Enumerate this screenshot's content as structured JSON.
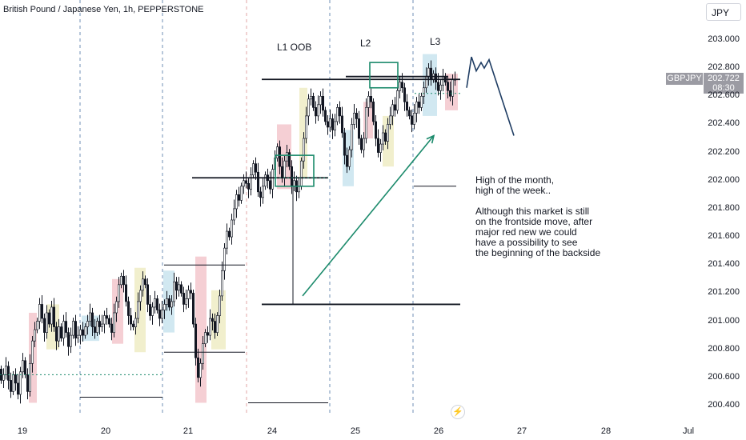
{
  "header": {
    "symbol_title": "British Pound / Japanese Yen, 1h, PEPPERSTONE",
    "currency": "JPY"
  },
  "price_tag": {
    "symbol": "GBPJPY",
    "price": "202.722",
    "countdown": "08:30"
  },
  "annotations": {
    "l1": "L1 OOB",
    "l2": "L2",
    "l3": "L3"
  },
  "note": "High of the month,\nhigh of the week..\n\nAlthough this market is still\non the frontside move, after\nmajor red new we could\nhave a possibility to see\nthe beginning of the backside",
  "icons": {
    "flash": "flash-icon"
  },
  "colors": {
    "up": "#ffffff",
    "down": "#131722",
    "session_red": "#f3c7cc",
    "session_blue": "#c9e4ef",
    "session_yellow": "#efecc4",
    "arrow": "#1b8a6b",
    "forecast": "#1f3d63",
    "box": "#1b8a6b"
  },
  "chart_data": {
    "type": "candlestick",
    "title": "British Pound / Japanese Yen, 1h, PEPPERSTONE",
    "y_axis": {
      "labels": [
        "203.000",
        "202.800",
        "202.600",
        "202.400",
        "202.200",
        "202.000",
        "201.800",
        "201.600",
        "201.400",
        "201.200",
        "201.000",
        "200.800",
        "200.600",
        "200.400"
      ],
      "range": [
        200.35,
        203.2
      ]
    },
    "x_axis": {
      "labels": [
        "19",
        "20",
        "21",
        "24",
        "25",
        "26",
        "27",
        "28",
        "Jul"
      ]
    },
    "path": [
      [
        0,
        200.66
      ],
      [
        3,
        200.58
      ],
      [
        6,
        200.62
      ],
      [
        9,
        200.68
      ],
      [
        12,
        200.58
      ],
      [
        15,
        200.5
      ],
      [
        18,
        200.62
      ],
      [
        21,
        200.56
      ],
      [
        24,
        200.48
      ],
      [
        27,
        200.64
      ],
      [
        30,
        200.72
      ],
      [
        33,
        200.62
      ],
      [
        36,
        200.5
      ],
      [
        39,
        200.7
      ],
      [
        42,
        200.86
      ],
      [
        45,
        200.94
      ],
      [
        48,
        201.0
      ],
      [
        51,
        201.12
      ],
      [
        54,
        201.02
      ],
      [
        57,
        200.92
      ],
      [
        60,
        201.06
      ],
      [
        63,
        200.98
      ],
      [
        66,
        201.1
      ],
      [
        69,
        200.96
      ],
      [
        72,
        200.86
      ],
      [
        75,
        200.96
      ],
      [
        78,
        200.88
      ],
      [
        81,
        201.0
      ],
      [
        84,
        200.92
      ],
      [
        87,
        200.82
      ],
      [
        90,
        200.9
      ],
      [
        93,
        201.0
      ],
      [
        96,
        200.88
      ],
      [
        99,
        200.9
      ],
      [
        102,
        200.94
      ],
      [
        105,
        200.9
      ],
      [
        108,
        200.96
      ],
      [
        111,
        201.0
      ],
      [
        114,
        201.06
      ],
      [
        117,
        200.96
      ],
      [
        120,
        200.92
      ],
      [
        123,
        201.0
      ],
      [
        126,
        200.96
      ],
      [
        129,
        200.98
      ],
      [
        132,
        201.04
      ],
      [
        135,
        201.02
      ],
      [
        138,
        200.98
      ],
      [
        141,
        200.92
      ],
      [
        144,
        201.06
      ],
      [
        147,
        201.14
      ],
      [
        150,
        201.26
      ],
      [
        153,
        201.32
      ],
      [
        156,
        201.26
      ],
      [
        159,
        201.14
      ],
      [
        162,
        201.04
      ],
      [
        165,
        200.98
      ],
      [
        168,
        200.96
      ],
      [
        171,
        201.02
      ],
      [
        174,
        201.14
      ],
      [
        177,
        201.22
      ],
      [
        180,
        201.3
      ],
      [
        183,
        201.26
      ],
      [
        186,
        201.12
      ],
      [
        189,
        201.04
      ],
      [
        192,
        201.1
      ],
      [
        195,
        201.16
      ],
      [
        198,
        201.08
      ],
      [
        201,
        201.02
      ],
      [
        204,
        201.08
      ],
      [
        207,
        201.12
      ],
      [
        210,
        201.16
      ],
      [
        213,
        201.1
      ],
      [
        216,
        201.14
      ],
      [
        219,
        201.28
      ],
      [
        222,
        201.22
      ],
      [
        225,
        201.26
      ],
      [
        228,
        201.2
      ],
      [
        231,
        201.12
      ],
      [
        234,
        201.16
      ],
      [
        237,
        201.22
      ],
      [
        240,
        201.2
      ],
      [
        243,
        200.98
      ],
      [
        246,
        200.74
      ],
      [
        249,
        200.6
      ],
      [
        252,
        200.7
      ],
      [
        255,
        200.84
      ],
      [
        258,
        200.92
      ],
      [
        261,
        200.9
      ],
      [
        264,
        201.02
      ],
      [
        267,
        201.0
      ],
      [
        270,
        200.92
      ],
      [
        273,
        201.04
      ],
      [
        276,
        201.18
      ],
      [
        279,
        201.36
      ],
      [
        282,
        201.52
      ],
      [
        285,
        201.64
      ],
      [
        288,
        201.6
      ],
      [
        291,
        201.72
      ],
      [
        294,
        201.8
      ],
      [
        297,
        201.9
      ],
      [
        300,
        201.86
      ],
      [
        303,
        201.96
      ],
      [
        306,
        202.0
      ],
      [
        309,
        201.98
      ],
      [
        312,
        201.94
      ],
      [
        315,
        202.04
      ],
      [
        318,
        202.12
      ],
      [
        321,
        202.06
      ],
      [
        324,
        201.92
      ],
      [
        327,
        201.88
      ],
      [
        330,
        201.96
      ],
      [
        333,
        202.04
      ],
      [
        336,
        202.0
      ],
      [
        339,
        201.94
      ],
      [
        342,
        202.08
      ],
      [
        345,
        202.16
      ],
      [
        348,
        202.24
      ],
      [
        351,
        202.1
      ],
      [
        354,
        202.02
      ],
      [
        357,
        202.14
      ],
      [
        360,
        202.2
      ],
      [
        363,
        202.1
      ],
      [
        366,
        201.96
      ],
      [
        369,
        202.0
      ],
      [
        372,
        201.92
      ],
      [
        375,
        201.96
      ],
      [
        378,
        202.14
      ],
      [
        381,
        202.3
      ],
      [
        384,
        202.46
      ],
      [
        387,
        202.58
      ],
      [
        390,
        202.6
      ],
      [
        393,
        202.52
      ],
      [
        396,
        202.46
      ],
      [
        399,
        202.54
      ],
      [
        402,
        202.6
      ],
      [
        405,
        202.5
      ],
      [
        408,
        202.42
      ],
      [
        411,
        202.38
      ],
      [
        414,
        202.44
      ],
      [
        417,
        202.36
      ],
      [
        420,
        202.42
      ],
      [
        423,
        202.52
      ],
      [
        426,
        202.46
      ],
      [
        429,
        202.34
      ],
      [
        432,
        202.18
      ],
      [
        435,
        202.1
      ],
      [
        438,
        202.22
      ],
      [
        441,
        202.4
      ],
      [
        444,
        202.48
      ],
      [
        447,
        202.44
      ],
      [
        450,
        202.3
      ],
      [
        453,
        202.22
      ],
      [
        456,
        202.3
      ],
      [
        459,
        202.52
      ],
      [
        462,
        202.6
      ],
      [
        465,
        202.56
      ],
      [
        468,
        202.42
      ],
      [
        471,
        202.3
      ],
      [
        474,
        202.2
      ],
      [
        477,
        202.26
      ],
      [
        480,
        202.34
      ],
      [
        483,
        202.28
      ],
      [
        486,
        202.4
      ],
      [
        489,
        202.46
      ],
      [
        492,
        202.54
      ],
      [
        495,
        202.5
      ],
      [
        498,
        202.64
      ],
      [
        501,
        202.7
      ],
      [
        504,
        202.66
      ],
      [
        507,
        202.56
      ],
      [
        510,
        202.5
      ],
      [
        513,
        202.46
      ],
      [
        516,
        202.4
      ],
      [
        519,
        202.48
      ],
      [
        522,
        202.56
      ],
      [
        525,
        202.52
      ],
      [
        528,
        202.6
      ],
      [
        531,
        202.66
      ],
      [
        534,
        202.74
      ],
      [
        537,
        202.8
      ],
      [
        540,
        202.72
      ],
      [
        543,
        202.76
      ],
      [
        546,
        202.7
      ],
      [
        549,
        202.64
      ],
      [
        552,
        202.68
      ],
      [
        555,
        202.74
      ],
      [
        558,
        202.7
      ],
      [
        561,
        202.64
      ],
      [
        564,
        202.6
      ],
      [
        567,
        202.72
      ],
      [
        570,
        202.72
      ]
    ],
    "horizontal_levels": [
      202.72,
      201.12,
      202.02,
      201.4,
      200.78,
      200.46,
      202.72
    ],
    "level_segments": [
      {
        "x0": 327,
        "x1": 575,
        "price": 202.72
      },
      {
        "x0": 432,
        "x1": 560,
        "price": 202.74
      },
      {
        "x0": 240,
        "x1": 410,
        "price": 202.02
      },
      {
        "x0": 327,
        "x1": 575,
        "price": 201.12
      },
      {
        "x0": 205,
        "x1": 306,
        "price": 201.4
      },
      {
        "x0": 205,
        "x1": 306,
        "price": 200.78
      },
      {
        "x0": 100,
        "x1": 203,
        "price": 200.46
      },
      {
        "x0": 310,
        "x1": 410,
        "price": 200.42
      },
      {
        "x0": 517,
        "x1": 570,
        "price": 201.96
      }
    ],
    "forecast_path": [
      [
        583,
        202.66
      ],
      [
        589,
        202.88
      ],
      [
        595,
        202.78
      ],
      [
        601,
        202.84
      ],
      [
        605,
        202.8
      ],
      [
        611,
        202.86
      ],
      [
        642,
        202.32
      ]
    ],
    "arrow": {
      "from": [
        378,
        201.18
      ],
      "to": [
        542,
        202.32
      ]
    },
    "boxes": [
      {
        "x0": 344,
        "x1": 392,
        "y0": 201.96,
        "y1": 202.18
      },
      {
        "x0": 462,
        "x1": 497,
        "y0": 202.66,
        "y1": 202.84
      }
    ],
    "session_separators": [
      100,
      203,
      308,
      412,
      516
    ],
    "grid": false,
    "legend": "none"
  }
}
